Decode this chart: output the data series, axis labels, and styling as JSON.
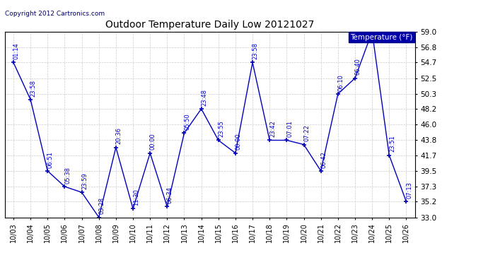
{
  "title": "Outdoor Temperature Daily Low 20121027",
  "copyright": "Copyright 2012 Cartronics.com",
  "legend_label": "Temperature (°F)",
  "x_labels": [
    "10/03",
    "10/04",
    "10/05",
    "10/06",
    "10/07",
    "10/08",
    "10/09",
    "10/10",
    "10/11",
    "10/12",
    "10/13",
    "10/14",
    "10/15",
    "10/16",
    "10/17",
    "10/18",
    "10/19",
    "10/20",
    "10/21",
    "10/22",
    "10/23",
    "10/24",
    "10/25",
    "10/26"
  ],
  "y_values": [
    54.7,
    49.5,
    39.5,
    37.3,
    36.5,
    33.0,
    42.8,
    34.2,
    42.0,
    34.5,
    44.8,
    48.2,
    43.8,
    42.0,
    54.7,
    43.8,
    43.8,
    43.2,
    39.5,
    50.3,
    52.5,
    59.0,
    41.7,
    35.2
  ],
  "point_labels": [
    "01:14",
    "23:58",
    "06:51",
    "05:38",
    "23:59",
    "03:28",
    "20:36",
    "11:30",
    "00:00",
    "06:34",
    "05:50",
    "23:48",
    "23:55",
    "00:00",
    "23:58",
    "23:42",
    "07:01",
    "07:22",
    "06:42",
    "06:10",
    "06:40",
    "",
    "23:51",
    "07:13"
  ],
  "ylim_min": 33.0,
  "ylim_max": 59.0,
  "yticks": [
    33.0,
    35.2,
    37.3,
    39.5,
    41.7,
    43.8,
    46.0,
    48.2,
    50.3,
    52.5,
    54.7,
    56.8,
    59.0
  ],
  "line_color": "#0000bb",
  "bg_color": "#ffffff",
  "grid_color": "#cccccc",
  "title_color": "#000000",
  "label_color": "#0000cc",
  "legend_bg": "#0000aa",
  "legend_fg": "#ffffff"
}
